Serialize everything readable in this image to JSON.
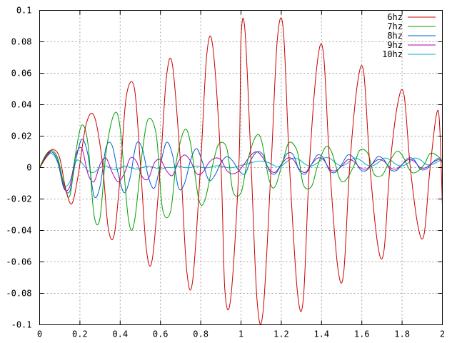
{
  "chart_data": {
    "type": "line",
    "title": "",
    "xlabel": "",
    "ylabel": "",
    "xlim": [
      0,
      2
    ],
    "ylim": [
      -0.1,
      0.1
    ],
    "grid": true,
    "legend_position": "top-right",
    "x_ticks": [
      "0",
      "0.2",
      "0.4",
      "0.6",
      "0.8",
      "1",
      "1.2",
      "1.4",
      "1.6",
      "1.8",
      "2"
    ],
    "y_ticks": [
      "0.1",
      "0.08",
      "0.06",
      "0.04",
      "0.02",
      "0",
      "-0.02",
      "-0.04",
      "-0.06",
      "-0.08",
      "-0.1"
    ],
    "series": [
      {
        "name": "6hz",
        "color": "#cc0000",
        "x": [
          0,
          0.02,
          0.04,
          0.07,
          0.1,
          0.13,
          0.16,
          0.19,
          0.23,
          0.27,
          0.31,
          0.34,
          0.37,
          0.4,
          0.43,
          0.47,
          0.5,
          0.53,
          0.56,
          0.6,
          0.63,
          0.66,
          0.7,
          0.73,
          0.76,
          0.8,
          0.83,
          0.86,
          0.9,
          0.92,
          0.95,
          0.99,
          1.0,
          1.02,
          1.05,
          1.08,
          1.11,
          1.15,
          1.18,
          1.21,
          1.24,
          1.28,
          1.31,
          1.34,
          1.38,
          1.41,
          1.44,
          1.48,
          1.51,
          1.54,
          1.58,
          1.61,
          1.64,
          1.68,
          1.71,
          1.74,
          1.78,
          1.81,
          1.84,
          1.88,
          1.91,
          1.94,
          1.98,
          2.0
        ],
        "y": [
          0,
          0.004,
          0.009,
          0.0115,
          0.006,
          -0.014,
          -0.023,
          -0.006,
          0.027,
          0.033,
          0.005,
          -0.038,
          -0.043,
          -0.005,
          0.045,
          0.051,
          0.003,
          -0.052,
          -0.058,
          0.002,
          0.058,
          0.065,
          0.002,
          -0.065,
          -0.072,
          0.003,
          0.072,
          0.077,
          0.003,
          -0.078,
          -0.082,
          0.003,
          0.082,
          0.087,
          0.003,
          -0.085,
          -0.091,
          0.002,
          0.081,
          0.088,
          0.003,
          -0.079,
          -0.083,
          0.002,
          0.068,
          0.072,
          0.002,
          -0.063,
          -0.067,
          0.001,
          0.055,
          0.06,
          0.001,
          -0.05,
          -0.053,
          0.001,
          0.042,
          0.046,
          0.001,
          -0.038,
          -0.042,
          0.001,
          0.036,
          -0.024
        ]
      },
      {
        "name": "7hz",
        "color": "#00a000",
        "x": [
          0,
          0.03,
          0.06,
          0.09,
          0.12,
          0.15,
          0.18,
          0.21,
          0.24,
          0.27,
          0.3,
          0.33,
          0.37,
          0.4,
          0.44,
          0.47,
          0.51,
          0.54,
          0.58,
          0.61,
          0.65,
          0.68,
          0.72,
          0.75,
          0.79,
          0.82,
          0.86,
          0.89,
          0.93,
          0.96,
          1.0,
          1.03,
          1.07,
          1.1,
          1.14,
          1.17,
          1.21,
          1.24,
          1.28,
          1.31,
          1.35,
          1.38,
          1.42,
          1.45,
          1.49,
          1.52,
          1.56,
          1.59,
          1.63,
          1.66,
          1.7,
          1.73,
          1.77,
          1.8,
          1.84,
          1.87,
          1.91,
          1.94,
          1.98,
          2.0
        ],
        "y": [
          0,
          0.008,
          0.011,
          0.006,
          -0.01,
          -0.018,
          0.01,
          0.027,
          0.015,
          -0.03,
          -0.032,
          0.01,
          0.034,
          0.025,
          -0.032,
          -0.035,
          0.01,
          0.031,
          0.02,
          -0.026,
          -0.028,
          0.005,
          0.024,
          0.015,
          -0.02,
          -0.021,
          0.002,
          0.015,
          0.012,
          -0.015,
          -0.016,
          0.003,
          0.019,
          0.018,
          -0.008,
          -0.012,
          0.005,
          0.016,
          0.01,
          -0.011,
          -0.012,
          0.001,
          0.013,
          0.01,
          -0.007,
          -0.008,
          0.001,
          0.011,
          0.009,
          -0.004,
          -0.005,
          0.002,
          0.01,
          0.008,
          -0.002,
          -0.003,
          0.002,
          0.009,
          0.007,
          0.003
        ]
      },
      {
        "name": "8hz",
        "color": "#0060d0",
        "x": [
          0,
          0.03,
          0.06,
          0.09,
          0.12,
          0.15,
          0.18,
          0.21,
          0.24,
          0.27,
          0.3,
          0.33,
          0.36,
          0.39,
          0.42,
          0.45,
          0.48,
          0.51,
          0.54,
          0.57,
          0.6,
          0.63,
          0.66,
          0.69,
          0.72,
          0.75,
          0.78,
          0.81,
          0.84,
          0.87,
          0.9,
          0.93,
          0.96,
          0.99,
          1.02,
          1.05,
          1.08,
          1.11,
          1.14,
          1.17,
          1.2,
          1.23,
          1.26,
          1.29,
          1.32,
          1.35,
          1.38,
          1.41,
          1.44,
          1.47,
          1.5,
          1.53,
          1.56,
          1.59,
          1.62,
          1.65,
          1.68,
          1.71,
          1.74,
          1.77,
          1.8,
          1.83,
          1.86,
          1.89,
          1.92,
          1.95,
          1.98,
          2.0
        ],
        "y": [
          0,
          0.007,
          0.01,
          0.004,
          -0.012,
          -0.015,
          0.005,
          0.018,
          0.008,
          -0.018,
          -0.012,
          0.013,
          0.014,
          -0.004,
          -0.016,
          -0.006,
          0.015,
          0.012,
          -0.006,
          -0.013,
          0.002,
          0.016,
          0.008,
          -0.013,
          -0.01,
          0.005,
          0.012,
          0.003,
          -0.008,
          -0.005,
          0.003,
          0.007,
          0.004,
          -0.002,
          -0.004,
          0.005,
          0.01,
          0.008,
          -0.002,
          -0.004,
          0.002,
          0.009,
          0.008,
          -0.002,
          -0.004,
          0.002,
          0.008,
          0.006,
          -0.002,
          -0.003,
          0.002,
          0.008,
          0.006,
          -0.001,
          -0.002,
          0.002,
          0.007,
          0.005,
          -0.001,
          -0.002,
          0.002,
          0.006,
          0.005,
          -0.001,
          -0.001,
          0.003,
          0.006,
          0.004
        ]
      },
      {
        "name": "9hz",
        "color": "#b000b0",
        "x": [
          0,
          0.03,
          0.06,
          0.09,
          0.12,
          0.15,
          0.18,
          0.21,
          0.24,
          0.27,
          0.3,
          0.33,
          0.36,
          0.39,
          0.42,
          0.45,
          0.48,
          0.51,
          0.54,
          0.57,
          0.6,
          0.63,
          0.66,
          0.69,
          0.72,
          0.75,
          0.78,
          0.81,
          0.84,
          0.87,
          0.9,
          0.93,
          0.96,
          0.99,
          1.02,
          1.05,
          1.08,
          1.11,
          1.14,
          1.17,
          1.2,
          1.23,
          1.26,
          1.29,
          1.32,
          1.35,
          1.38,
          1.41,
          1.44,
          1.47,
          1.5,
          1.53,
          1.56,
          1.59,
          1.62,
          1.65,
          1.68,
          1.71,
          1.74,
          1.77,
          1.8,
          1.83,
          1.86,
          1.89,
          1.92,
          1.95,
          1.98,
          2.0
        ],
        "y": [
          0,
          0.006,
          0.01,
          0.004,
          -0.013,
          -0.012,
          0.008,
          0.012,
          -0.004,
          -0.009,
          0.002,
          0.006,
          -0.003,
          -0.009,
          -0.004,
          0.006,
          0.004,
          -0.006,
          -0.007,
          0.003,
          0.005,
          -0.002,
          -0.005,
          0.004,
          0.008,
          0.004,
          -0.004,
          -0.003,
          0.003,
          0.006,
          0.005,
          -0.002,
          -0.004,
          -0.002,
          0.003,
          0.008,
          0.01,
          0.006,
          -0.001,
          -0.003,
          0.002,
          0.006,
          0.005,
          -0.001,
          -0.003,
          0.002,
          0.006,
          0.005,
          -0.001,
          -0.002,
          0.001,
          0.005,
          0.004,
          0.0,
          -0.001,
          0.002,
          0.005,
          0.004,
          0.0,
          -0.001,
          0.002,
          0.005,
          0.004,
          0.0,
          0.0,
          0.003,
          0.005,
          0.004
        ]
      },
      {
        "name": "10hz",
        "color": "#00b0c0",
        "x": [
          0,
          0.03,
          0.06,
          0.09,
          0.12,
          0.15,
          0.18,
          0.21,
          0.24,
          0.27,
          0.3,
          0.33,
          0.36,
          0.39,
          0.42,
          0.45,
          0.48,
          0.51,
          0.54,
          0.57,
          0.6,
          0.63,
          0.66,
          0.69,
          0.72,
          0.75,
          0.78,
          0.81,
          0.84,
          0.87,
          0.9,
          0.93,
          0.96,
          0.99,
          1.02,
          1.05,
          1.08,
          1.11,
          1.14,
          1.17,
          1.2,
          1.23,
          1.26,
          1.29,
          1.32,
          1.35,
          1.38,
          1.41,
          1.44,
          1.47,
          1.5,
          1.53,
          1.56,
          1.59,
          1.62,
          1.65,
          1.68,
          1.71,
          1.74,
          1.77,
          1.8,
          1.83,
          1.86,
          1.89,
          1.92,
          1.95,
          1.98,
          2.0
        ],
        "y": [
          0,
          0.006,
          0.009,
          0.003,
          -0.011,
          -0.009,
          0.004,
          0.003,
          -0.002,
          -0.003,
          0.0,
          0.001,
          -0.001,
          -0.001,
          0.001,
          0.0,
          -0.001,
          0.0,
          0.001,
          0.0,
          -0.001,
          0.0,
          0.0,
          0.001,
          0.0,
          0.0,
          0.001,
          0.0,
          0.0,
          0.001,
          0.001,
          0.0,
          0.0,
          0.001,
          0.002,
          0.003,
          0.004,
          0.004,
          0.003,
          0.001,
          0.001,
          0.004,
          0.006,
          0.005,
          0.002,
          0.001,
          0.003,
          0.006,
          0.006,
          0.003,
          0.001,
          0.003,
          0.006,
          0.005,
          0.002,
          0.001,
          0.003,
          0.006,
          0.005,
          0.002,
          0.001,
          0.003,
          0.006,
          0.005,
          0.002,
          0.002,
          0.004,
          0.005
        ]
      }
    ]
  }
}
